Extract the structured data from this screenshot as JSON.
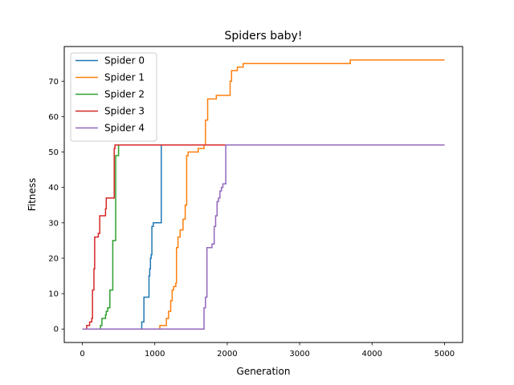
{
  "chart_data": {
    "type": "line",
    "title": "Spiders baby!",
    "xlabel": "Generation",
    "ylabel": "Fitness",
    "xlim": [
      -250,
      5250
    ],
    "ylim": [
      -3.8,
      79.8
    ],
    "xticks": [
      0,
      1000,
      2000,
      3000,
      4000,
      5000
    ],
    "yticks": [
      0,
      10,
      20,
      30,
      40,
      50,
      60,
      70
    ],
    "grid": false,
    "legend": "top-left",
    "line_style": "step",
    "series": [
      {
        "name": "Spider 0",
        "color": "#1f77b4",
        "points": [
          [
            0,
            0
          ],
          [
            820,
            0
          ],
          [
            820,
            2
          ],
          [
            850,
            2
          ],
          [
            850,
            9
          ],
          [
            920,
            9
          ],
          [
            920,
            15
          ],
          [
            930,
            15
          ],
          [
            930,
            17
          ],
          [
            940,
            17
          ],
          [
            940,
            20
          ],
          [
            950,
            20
          ],
          [
            950,
            21
          ],
          [
            960,
            21
          ],
          [
            960,
            29
          ],
          [
            980,
            29
          ],
          [
            980,
            30
          ],
          [
            1090,
            30
          ],
          [
            1090,
            52
          ],
          [
            5000,
            52
          ]
        ]
      },
      {
        "name": "Spider 1",
        "color": "#ff7f0e",
        "points": [
          [
            0,
            0
          ],
          [
            1070,
            0
          ],
          [
            1070,
            1
          ],
          [
            1160,
            1
          ],
          [
            1160,
            3
          ],
          [
            1190,
            3
          ],
          [
            1190,
            5
          ],
          [
            1220,
            5
          ],
          [
            1220,
            8
          ],
          [
            1240,
            8
          ],
          [
            1240,
            11
          ],
          [
            1260,
            11
          ],
          [
            1260,
            12
          ],
          [
            1290,
            12
          ],
          [
            1290,
            13
          ],
          [
            1300,
            13
          ],
          [
            1300,
            23
          ],
          [
            1320,
            23
          ],
          [
            1320,
            26
          ],
          [
            1350,
            26
          ],
          [
            1350,
            28
          ],
          [
            1390,
            28
          ],
          [
            1390,
            31
          ],
          [
            1420,
            31
          ],
          [
            1420,
            35
          ],
          [
            1440,
            35
          ],
          [
            1440,
            49
          ],
          [
            1460,
            49
          ],
          [
            1460,
            50
          ],
          [
            1600,
            50
          ],
          [
            1600,
            51
          ],
          [
            1680,
            51
          ],
          [
            1680,
            52
          ],
          [
            1700,
            52
          ],
          [
            1700,
            59
          ],
          [
            1730,
            59
          ],
          [
            1730,
            65
          ],
          [
            1850,
            65
          ],
          [
            1850,
            66
          ],
          [
            2040,
            66
          ],
          [
            2040,
            70
          ],
          [
            2060,
            70
          ],
          [
            2060,
            73
          ],
          [
            2140,
            73
          ],
          [
            2140,
            74
          ],
          [
            2220,
            74
          ],
          [
            2220,
            75
          ],
          [
            3700,
            75
          ],
          [
            3700,
            76
          ],
          [
            5000,
            76
          ]
        ]
      },
      {
        "name": "Spider 2",
        "color": "#2ca02c",
        "points": [
          [
            0,
            0
          ],
          [
            250,
            0
          ],
          [
            250,
            1
          ],
          [
            270,
            1
          ],
          [
            270,
            3
          ],
          [
            320,
            3
          ],
          [
            320,
            4
          ],
          [
            330,
            4
          ],
          [
            330,
            5
          ],
          [
            350,
            5
          ],
          [
            350,
            6
          ],
          [
            380,
            6
          ],
          [
            380,
            11
          ],
          [
            420,
            11
          ],
          [
            420,
            25
          ],
          [
            460,
            25
          ],
          [
            460,
            49
          ],
          [
            500,
            49
          ],
          [
            500,
            52
          ],
          [
            5000,
            52
          ]
        ]
      },
      {
        "name": "Spider 3",
        "color": "#d62728",
        "points": [
          [
            0,
            0
          ],
          [
            60,
            0
          ],
          [
            60,
            1
          ],
          [
            100,
            1
          ],
          [
            100,
            2
          ],
          [
            130,
            2
          ],
          [
            130,
            3
          ],
          [
            140,
            3
          ],
          [
            140,
            11
          ],
          [
            160,
            11
          ],
          [
            160,
            17
          ],
          [
            170,
            17
          ],
          [
            170,
            26
          ],
          [
            220,
            26
          ],
          [
            220,
            27
          ],
          [
            240,
            27
          ],
          [
            240,
            32
          ],
          [
            320,
            32
          ],
          [
            320,
            34
          ],
          [
            330,
            34
          ],
          [
            330,
            37
          ],
          [
            440,
            37
          ],
          [
            440,
            51
          ],
          [
            450,
            51
          ],
          [
            450,
            52
          ],
          [
            5000,
            52
          ]
        ]
      },
      {
        "name": "Spider 4",
        "color": "#9467bd",
        "points": [
          [
            0,
            0
          ],
          [
            1680,
            0
          ],
          [
            1680,
            6
          ],
          [
            1700,
            6
          ],
          [
            1700,
            9
          ],
          [
            1720,
            9
          ],
          [
            1720,
            23
          ],
          [
            1790,
            23
          ],
          [
            1790,
            24
          ],
          [
            1820,
            24
          ],
          [
            1820,
            29
          ],
          [
            1840,
            29
          ],
          [
            1840,
            32
          ],
          [
            1860,
            32
          ],
          [
            1860,
            36
          ],
          [
            1880,
            36
          ],
          [
            1880,
            37
          ],
          [
            1900,
            37
          ],
          [
            1900,
            39
          ],
          [
            1920,
            39
          ],
          [
            1920,
            40
          ],
          [
            1940,
            40
          ],
          [
            1940,
            41
          ],
          [
            1980,
            41
          ],
          [
            1980,
            52
          ],
          [
            5000,
            52
          ]
        ]
      }
    ]
  }
}
